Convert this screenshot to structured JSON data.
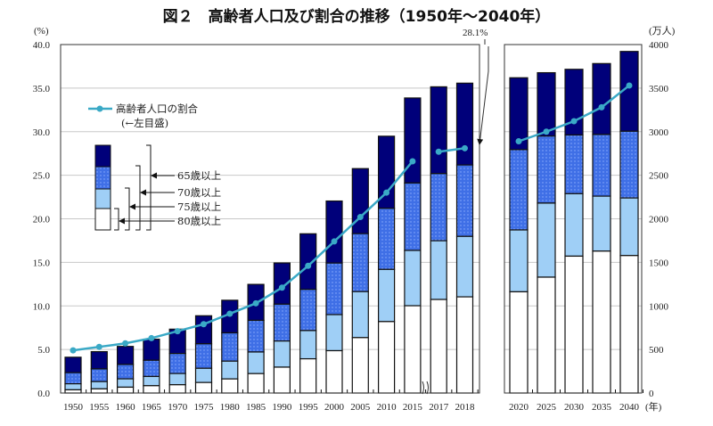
{
  "chart_data": {
    "type": "bar",
    "title": "図２　高齢者人口及び割合の推移（1950年～2040年）",
    "left_axis": {
      "unit": "(%)",
      "range": [
        0,
        40
      ],
      "ticks": [
        "0.0",
        "5.0",
        "10.0",
        "15.0",
        "20.0",
        "25.0",
        "30.0",
        "35.0",
        "40.0"
      ]
    },
    "right_axis": {
      "unit": "(万人)",
      "range": [
        0,
        4000
      ],
      "ticks": [
        "0",
        "500",
        "1000",
        "1500",
        "2000",
        "2500",
        "3000",
        "3500",
        "4000"
      ]
    },
    "x_unit": "(年)",
    "grid": true,
    "stacked_note": "nested",
    "categories": [
      "1950",
      "1955",
      "1960",
      "1965",
      "1970",
      "1975",
      "1980",
      "1985",
      "1990",
      "1995",
      "2000",
      "2005",
      "2010",
      "2015",
      "2017",
      "2018",
      "2020",
      "2025",
      "2030",
      "2035",
      "2040"
    ],
    "series": [
      {
        "name": "65歳以上",
        "color": "#00007a",
        "values": [
          411,
          475,
          535,
          618,
          733,
          887,
          1065,
          1247,
          1493,
          1828,
          2204,
          2576,
          2948,
          3387,
          3515,
          3557,
          3619,
          3677,
          3716,
          3782,
          3921
        ]
      },
      {
        "name": "70歳以上",
        "color": "#3f6fe6",
        "values": [
          234,
          277,
          328,
          376,
          454,
          565,
          691,
          834,
          1020,
          1190,
          1492,
          1830,
          2121,
          2411,
          2519,
          2618,
          2794,
          2950,
          2962,
          2968,
          3005
        ]
      },
      {
        "name": "75歳以上",
        "color": "#9fcff6",
        "values": [
          106,
          131,
          163,
          190,
          224,
          284,
          366,
          471,
          597,
          717,
          900,
          1164,
          1419,
          1637,
          1748,
          1798,
          1872,
          2180,
          2288,
          2260,
          2239
        ]
      },
      {
        "name": "80歳以上",
        "color": "#ffffff",
        "values": [
          37,
          48,
          67,
          84,
          95,
          121,
          162,
          223,
          297,
          393,
          486,
          636,
          820,
          1002,
          1074,
          1104,
          1162,
          1330,
          1571,
          1629,
          1578
        ]
      }
    ],
    "line": {
      "name": "高齢者人口の割合",
      "name_note": "(←左目盛)",
      "color": "#3aa9c6",
      "values": [
        4.9,
        5.3,
        5.7,
        6.3,
        7.1,
        7.9,
        9.1,
        10.3,
        12.1,
        14.6,
        17.4,
        20.2,
        23.0,
        26.6,
        27.7,
        28.1,
        28.9,
        30.0,
        31.2,
        32.8,
        35.3
      ]
    },
    "annotation": "28.1%",
    "legend_placement": "top-left"
  }
}
